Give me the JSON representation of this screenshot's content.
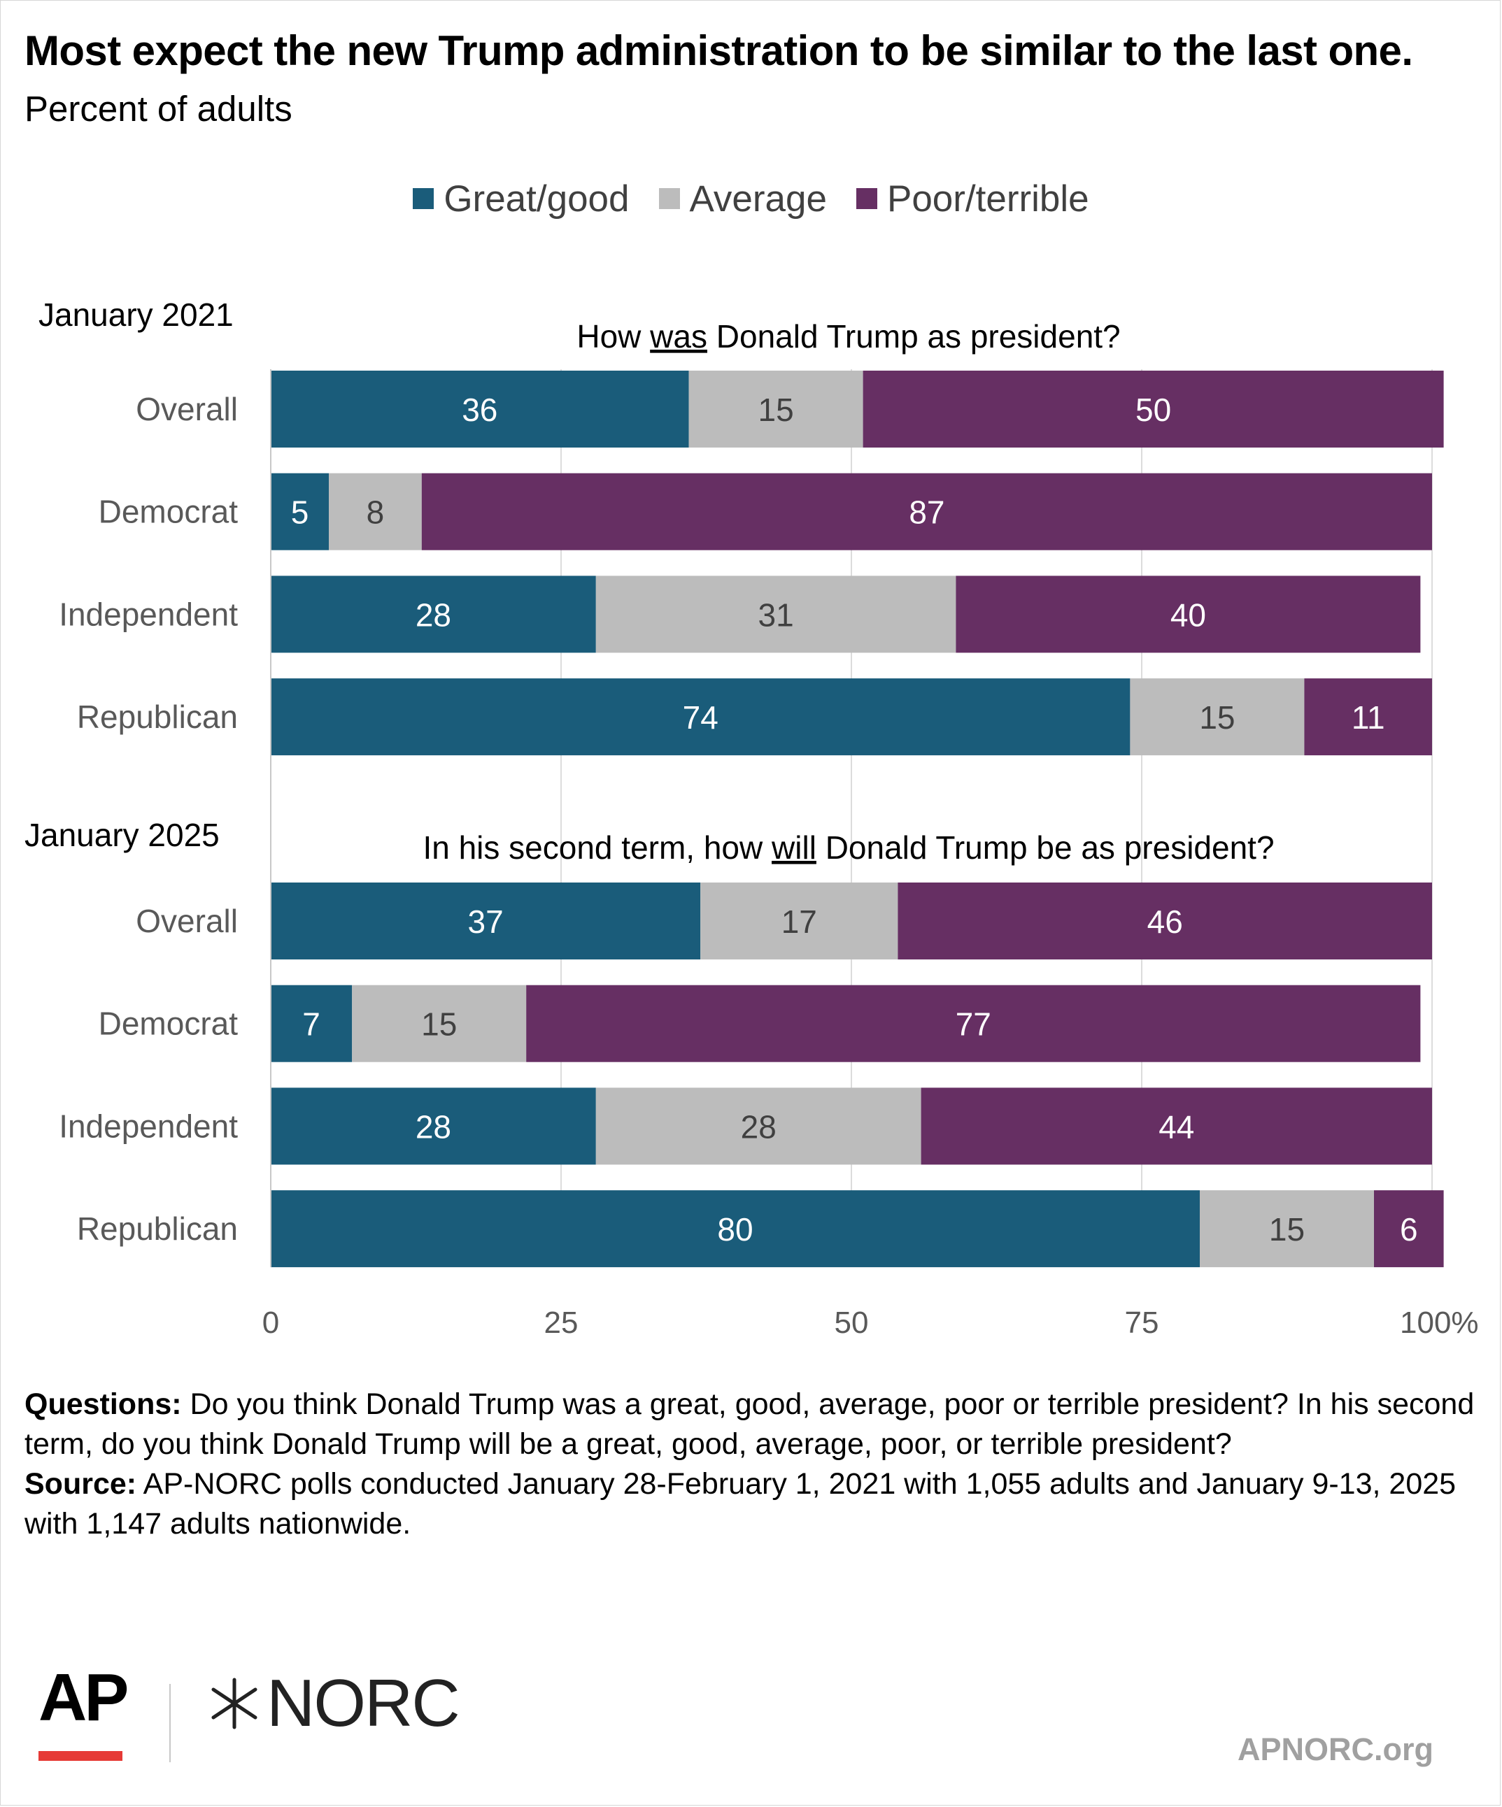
{
  "title": "Most expect the new Trump administration to be similar to the last one.",
  "subtitle": "Percent of adults",
  "legend": [
    {
      "label": "Great/good",
      "color": "#1a5c7a"
    },
    {
      "label": "Average",
      "color": "#bcbcbc"
    },
    {
      "label": "Poor/terrible",
      "color": "#662f63"
    }
  ],
  "chart_data": {
    "type": "bar",
    "orientation": "horizontal",
    "stacked": true,
    "xlim": [
      0,
      100
    ],
    "x_ticks": [
      "0",
      "25",
      "50",
      "75",
      "100%"
    ],
    "grid": true,
    "legend_position": "top",
    "panels": [
      {
        "period": "January 2021",
        "question": "How was Donald Trump as president?",
        "question_prefix": "How ",
        "question_underlined": "was",
        "question_suffix": " Donald Trump as president?",
        "categories": [
          "Overall",
          "Democrat",
          "Independent",
          "Republican"
        ],
        "series": [
          {
            "name": "Great/good",
            "values": [
              36,
              5,
              28,
              74
            ]
          },
          {
            "name": "Average",
            "values": [
              15,
              8,
              31,
              15
            ]
          },
          {
            "name": "Poor/terrible",
            "values": [
              50,
              87,
              40,
              11
            ]
          }
        ]
      },
      {
        "period": "January 2025",
        "question": "In his second term, how will Donald Trump be as president?",
        "question_prefix": "In his second term, how ",
        "question_underlined": "will",
        "question_suffix": " Donald Trump be as president?",
        "categories": [
          "Overall",
          "Democrat",
          "Independent",
          "Republican"
        ],
        "series": [
          {
            "name": "Great/good",
            "values": [
              37,
              7,
              28,
              80
            ]
          },
          {
            "name": "Average",
            "values": [
              17,
              15,
              28,
              15
            ]
          },
          {
            "name": "Poor/terrible",
            "values": [
              46,
              77,
              44,
              6
            ]
          }
        ]
      }
    ]
  },
  "footnotes": {
    "questions_label": "Questions:",
    "questions_text": " Do you think Donald Trump was a great, good, average, poor or terrible president? In his second term, do you think Donald Trump will be a great, good, average, poor, or terrible president?",
    "source_label": "Source:",
    "source_text": " AP-NORC polls conducted January 28-February 1, 2021 with 1,055 adults and January 9-13, 2025 with 1,147 adults nationwide."
  },
  "logos": {
    "ap": "AP",
    "ap_bar_color": "#e63a36",
    "norc": "NORC"
  },
  "website": "APNORC.org"
}
